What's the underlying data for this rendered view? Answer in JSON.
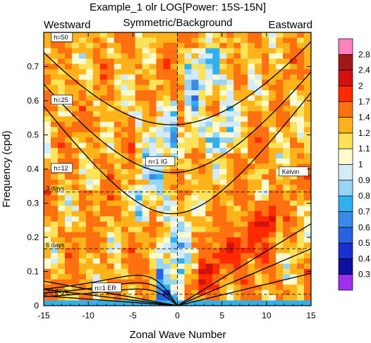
{
  "chart_data": {
    "type": "heatmap",
    "title": "Example_1 olr LOG[Power: 15S-15N]",
    "subtitle": "Symmetric/Background",
    "left_caption": "Westward",
    "right_caption": "Eastward",
    "xlabel": "Zonal Wave Number",
    "ylabel": "Frequency (cpd)",
    "xlim": [
      -15,
      15
    ],
    "ylim": [
      0,
      0.8
    ],
    "x_ticks": [
      -15,
      -10,
      -5,
      0,
      5,
      10,
      15
    ],
    "y_ticks": [
      0,
      0.1,
      0.2,
      0.3,
      0.4,
      0.5,
      0.6,
      0.7
    ],
    "x_tick_labels": [
      "-15",
      "-10",
      "-5",
      "0",
      "5",
      "10",
      "15"
    ],
    "y_tick_labels": [
      "0",
      "0.1",
      "0.2",
      "0.3",
      "0.4",
      "0.5",
      "0.6",
      "0.7"
    ],
    "period_lines": [
      {
        "label": "3 days",
        "freq": 0.3333
      },
      {
        "label": "6 days",
        "freq": 0.1667
      },
      {
        "label": "30 days",
        "freq": 0.0333
      }
    ],
    "equivalent_depths": [
      "h=12",
      "h=25",
      "h=50"
    ],
    "dispersion_labels": [
      {
        "label": "Kelvin",
        "k": 11.5,
        "freq": 0.39
      },
      {
        "label": "n=1 IG",
        "k": -3.5,
        "freq": 0.42
      },
      {
        "label": "n=1 ER",
        "k": -9.5,
        "freq": 0.05
      },
      {
        "label": "h=12",
        "k": -14.1,
        "freq": 0.4
      },
      {
        "label": "h=25",
        "k": -14.1,
        "freq": 0.6
      },
      {
        "label": "h=50",
        "k": -14.1,
        "freq": 0.783
      }
    ],
    "colorbar": {
      "labels": [
        "0.3",
        "0.4",
        "0.5",
        "0.6",
        "0.7",
        "0.8",
        "0.9",
        "1",
        "1.1",
        "1.2",
        "1.4",
        "1.7",
        "2",
        "2.4",
        "2.8"
      ],
      "colors": [
        "#a030f0",
        "#1010a0",
        "#1a2fd0",
        "#2a62e0",
        "#3a8ae8",
        "#30b0ee",
        "#98d4f4",
        "#d4ecfa",
        "#fffad0",
        "#fde25a",
        "#ffb21a",
        "#ff7010",
        "#ff2a00",
        "#d21010",
        "#a01818",
        "#ff80c0"
      ]
    }
  }
}
